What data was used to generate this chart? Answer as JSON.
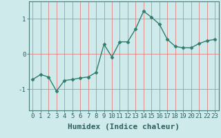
{
  "xlabel": "Humidex (Indice chaleur)",
  "x": [
    0,
    1,
    2,
    3,
    4,
    5,
    6,
    7,
    8,
    9,
    10,
    11,
    12,
    13,
    14,
    15,
    16,
    17,
    18,
    19,
    20,
    21,
    22,
    23
  ],
  "y": [
    -0.72,
    -0.58,
    -0.65,
    -1.05,
    -0.75,
    -0.72,
    -0.68,
    -0.65,
    -0.52,
    0.28,
    -0.08,
    0.35,
    0.35,
    0.72,
    1.22,
    1.05,
    0.85,
    0.42,
    0.22,
    0.18,
    0.18,
    0.3,
    0.38,
    0.42
  ],
  "line_color": "#2e7d6e",
  "marker": "D",
  "marker_size": 2.5,
  "bg_color": "#ceeaea",
  "grid_color": "#e08080",
  "ylim": [
    -1.6,
    1.5
  ],
  "xlim": [
    -0.5,
    23.5
  ],
  "yticks": [
    -1,
    0,
    1
  ],
  "xticks": [
    0,
    1,
    2,
    3,
    4,
    5,
    6,
    7,
    8,
    9,
    10,
    11,
    12,
    13,
    14,
    15,
    16,
    17,
    18,
    19,
    20,
    21,
    22,
    23
  ],
  "tick_fontsize": 6.5,
  "xlabel_fontsize": 8,
  "spine_color": "#4a7a7a",
  "axis_label_color": "#2e5f5f"
}
